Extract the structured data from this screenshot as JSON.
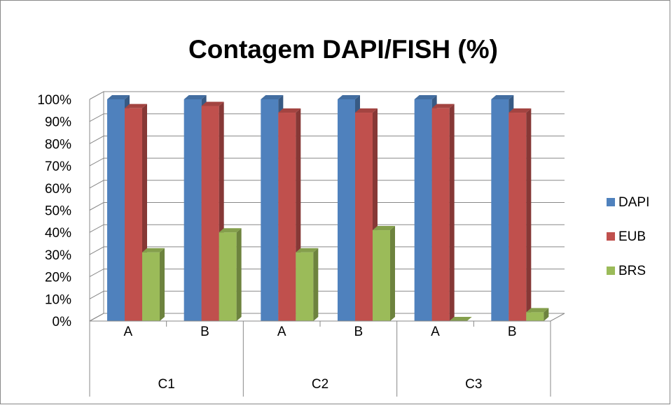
{
  "chart_data": {
    "type": "bar3d",
    "title": "Contagem DAPI/FISH (%)",
    "categories": [
      "A",
      "B",
      "A",
      "B",
      "A",
      "B"
    ],
    "groups": [
      "C1",
      "C2",
      "C3"
    ],
    "series": [
      {
        "name": "DAPI",
        "color": "#4f81bd",
        "values": [
          100,
          100,
          100,
          100,
          100,
          100
        ]
      },
      {
        "name": "EUB",
        "color": "#c0504d",
        "values": [
          96,
          97,
          94,
          94,
          96,
          94
        ]
      },
      {
        "name": "BRS",
        "color": "#9bbb59",
        "values": [
          31,
          40,
          31,
          41,
          0,
          4
        ]
      }
    ],
    "ylim": [
      0,
      100
    ],
    "yticks": [
      {
        "value": 0,
        "label": "0%"
      },
      {
        "value": 10,
        "label": "10%"
      },
      {
        "value": 20,
        "label": "20%"
      },
      {
        "value": 30,
        "label": "30%"
      },
      {
        "value": 40,
        "label": "40%"
      },
      {
        "value": 50,
        "label": "50%"
      },
      {
        "value": 60,
        "label": "60%"
      },
      {
        "value": 70,
        "label": "70%"
      },
      {
        "value": 80,
        "label": "80%"
      },
      {
        "value": 90,
        "label": "90%"
      },
      {
        "value": 100,
        "label": "100%"
      }
    ],
    "grid": true,
    "legend": "right"
  }
}
